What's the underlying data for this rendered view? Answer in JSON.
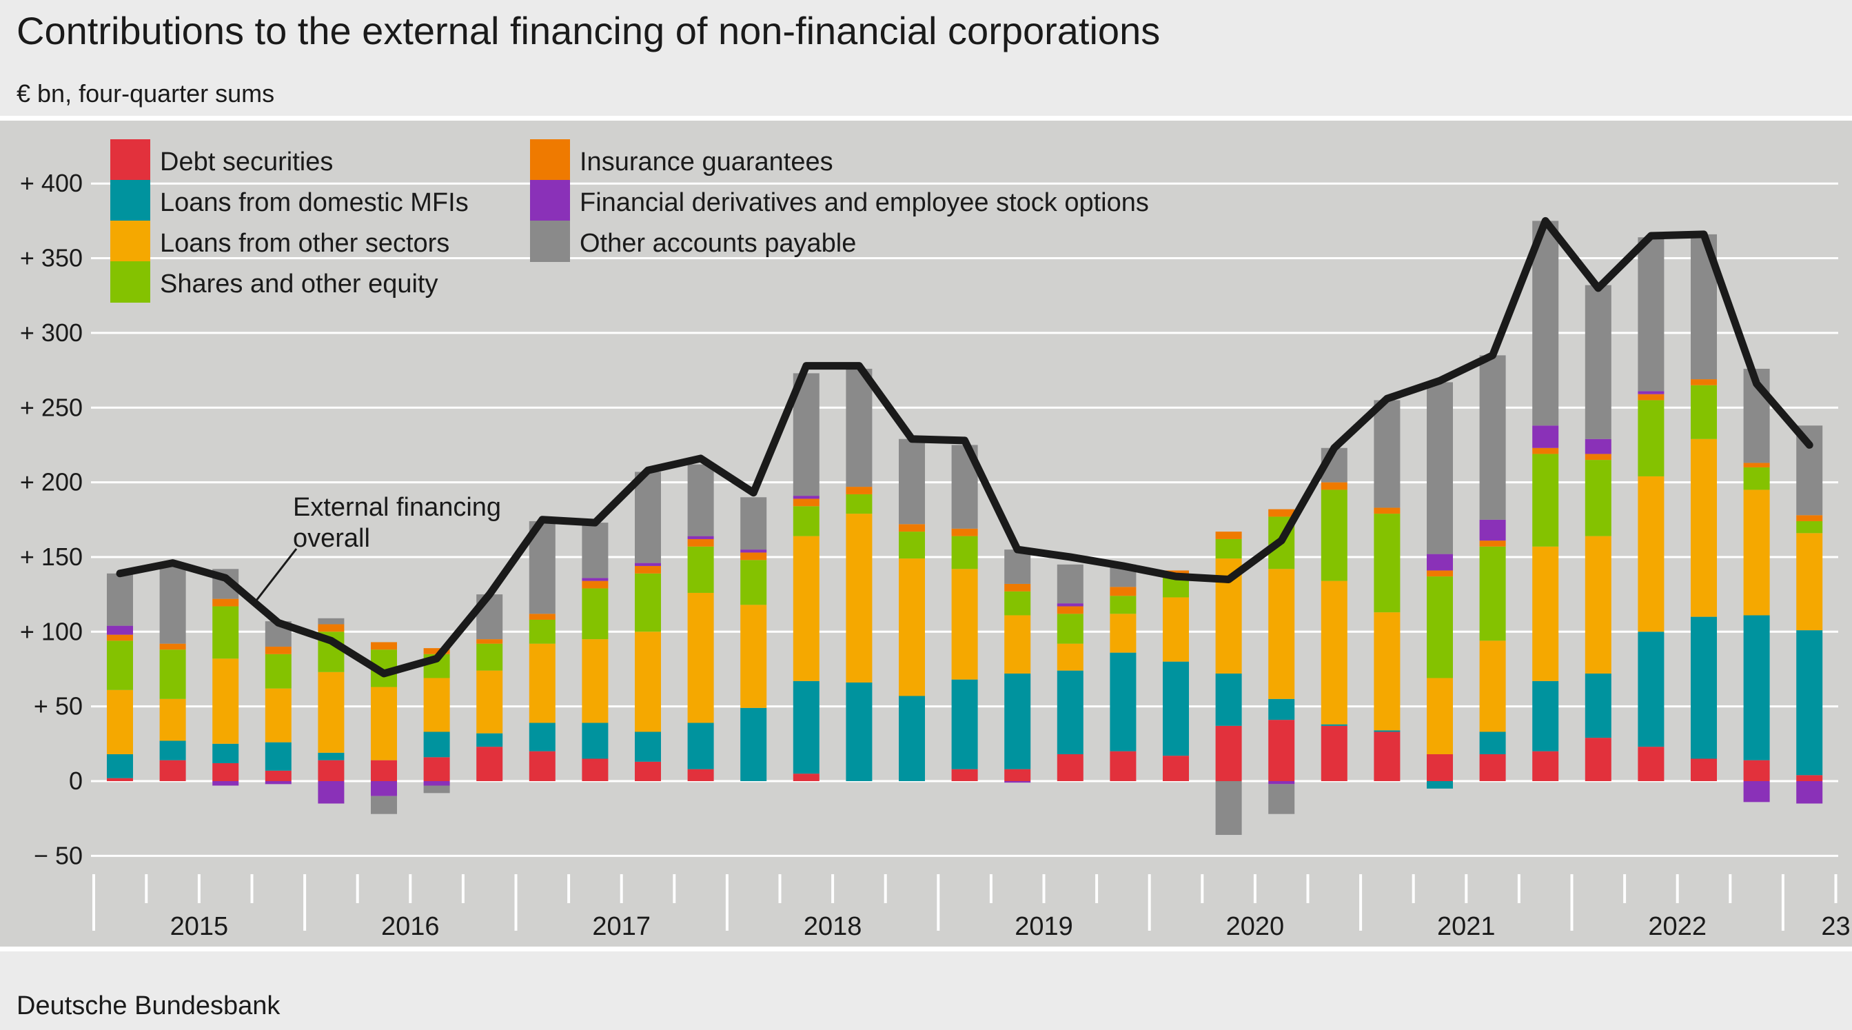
{
  "title": "Contributions to the external financing of non-financial corporations",
  "subtitle": "€ bn, four-quarter sums",
  "source": "Deutsche Bundesbank",
  "chart_data": {
    "type": "bar",
    "stacked": true,
    "ylim": [
      -50,
      430
    ],
    "yticks": [
      -50,
      0,
      50,
      100,
      150,
      200,
      250,
      300,
      350,
      400
    ],
    "ytick_labels": [
      "−  50",
      "0",
      "+  50",
      "+ 100",
      "+ 150",
      "+ 200",
      "+ 250",
      "+ 300",
      "+ 350",
      "+ 400"
    ],
    "grid": true,
    "legend": "top-left",
    "year_labels": [
      "2015",
      "2016",
      "2017",
      "2018",
      "2019",
      "2020",
      "2021",
      "2022",
      "23"
    ],
    "quarters_per_year": [
      4,
      4,
      4,
      4,
      4,
      4,
      4,
      4,
      2
    ],
    "annotation": {
      "lines": [
        "External financing",
        "overall"
      ]
    },
    "colors": {
      "Debt securities": "#e2313c",
      "Loans from domestic MFIs": "#00939e",
      "Loans from other sectors": "#f5a800",
      "Shares and other equity": "#84c200",
      "Insurance guarantees": "#ef7a00",
      "Financial derivatives and employee stock options": "#8a31b8",
      "Other accounts payable": "#8a8a8a",
      "line": "#1a1a1a"
    },
    "legend_order": [
      "Debt securities",
      "Loans from domestic MFIs",
      "Loans from other sectors",
      "Shares and other equity",
      "Insurance guarantees",
      "Financial derivatives and employee stock options",
      "Other accounts payable"
    ],
    "series": [
      {
        "name": "Debt securities",
        "values": [
          2,
          14,
          12,
          7,
          14,
          14,
          16,
          23,
          20,
          15,
          13,
          8,
          0,
          5,
          0,
          0,
          8,
          8,
          18,
          20,
          17,
          37,
          41,
          37,
          33,
          18,
          18,
          20,
          29,
          23,
          15,
          14,
          4
        ]
      },
      {
        "name": "Loans from domestic MFIs",
        "values": [
          16,
          13,
          13,
          19,
          5,
          0,
          17,
          9,
          19,
          24,
          20,
          31,
          49,
          62,
          66,
          57,
          60,
          64,
          56,
          66,
          63,
          35,
          14,
          1,
          1,
          -5,
          15,
          47,
          43,
          77,
          95,
          97,
          97
        ]
      },
      {
        "name": "Loans from other sectors",
        "values": [
          43,
          28,
          57,
          36,
          54,
          49,
          36,
          42,
          53,
          56,
          67,
          87,
          69,
          97,
          113,
          92,
          74,
          39,
          18,
          26,
          43,
          77,
          87,
          96,
          79,
          51,
          61,
          90,
          92,
          104,
          119,
          84,
          65
        ]
      },
      {
        "name": "Shares and other equity",
        "values": [
          33,
          33,
          35,
          23,
          27,
          25,
          16,
          18,
          16,
          34,
          39,
          31,
          30,
          20,
          13,
          18,
          22,
          16,
          20,
          12,
          13,
          13,
          35,
          61,
          66,
          68,
          63,
          62,
          51,
          51,
          36,
          15,
          8
        ]
      },
      {
        "name": "Insurance guarantees",
        "values": [
          4,
          4,
          5,
          5,
          5,
          5,
          4,
          3,
          4,
          5,
          5,
          5,
          5,
          5,
          5,
          5,
          5,
          5,
          5,
          6,
          5,
          5,
          5,
          5,
          4,
          4,
          4,
          4,
          4,
          4,
          4,
          3,
          4
        ]
      },
      {
        "name": "Financial derivatives and employee stock options",
        "values": [
          6,
          0,
          -3,
          -2,
          -15,
          -10,
          -3,
          0,
          0,
          2,
          2,
          2,
          2,
          2,
          0,
          0,
          0,
          -1,
          2,
          0,
          0,
          0,
          -2,
          0,
          0,
          11,
          14,
          15,
          10,
          2,
          0,
          -14,
          -15
        ]
      },
      {
        "name": "Other accounts payable",
        "values": [
          35,
          53,
          20,
          17,
          4,
          -12,
          -5,
          30,
          62,
          37,
          61,
          48,
          35,
          82,
          79,
          57,
          56,
          23,
          26,
          15,
          0,
          -36,
          -20,
          23,
          72,
          115,
          110,
          137,
          103,
          103,
          97,
          63,
          60
        ]
      }
    ],
    "line": {
      "name": "External financing overall",
      "values": [
        139,
        146,
        136,
        106,
        94,
        72,
        82,
        125,
        175,
        173,
        208,
        216,
        193,
        278,
        278,
        229,
        228,
        155,
        150,
        144,
        137,
        135,
        161,
        223,
        256,
        268,
        285,
        375,
        330,
        365,
        366,
        266,
        225
      ]
    }
  }
}
